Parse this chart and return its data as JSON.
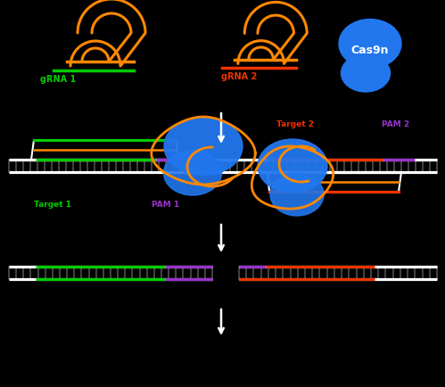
{
  "bg": "#000000",
  "orange": "#FF8800",
  "green": "#00CC00",
  "red": "#EE3300",
  "blue": "#2277EE",
  "purple": "#9933CC",
  "white": "#FFFFFF",
  "tick_dark": "#333333",
  "grna1": "gRNA 1",
  "grna2": "gRNA 2",
  "cas9n": "Cas9n",
  "target1": "Target 1",
  "pam1": "PAM 1",
  "target2": "Target 2",
  "pam2": "PAM 2"
}
